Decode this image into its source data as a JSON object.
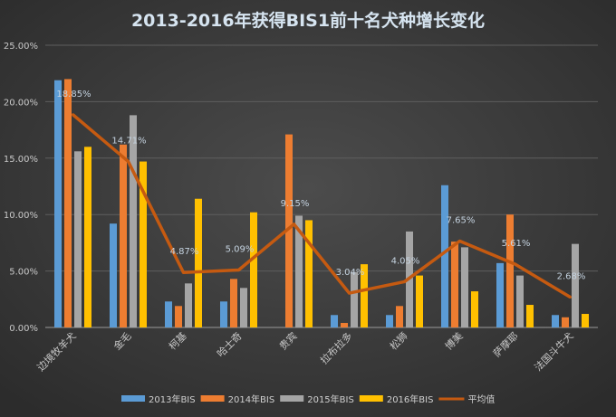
{
  "chart_data": {
    "type": "bar",
    "title": "2013-2016年获得BIS1前十名犬种增长变化",
    "categories": [
      "边境牧羊犬",
      "金毛",
      "柯基",
      "哈士奇",
      "贵宾",
      "拉布拉多",
      "松狮",
      "博美",
      "萨摩耶",
      "法国斗牛犬"
    ],
    "ylim": [
      0,
      25
    ],
    "yticks": [
      "0.00%",
      "5.00%",
      "10.00%",
      "15.00%",
      "20.00%",
      "25.00%"
    ],
    "grid": true,
    "legend_position": "bottom",
    "series": [
      {
        "name": "2013年BIS",
        "type": "bar",
        "color": "#5b9bd5",
        "values": [
          21.9,
          9.2,
          2.3,
          2.3,
          0,
          1.1,
          1.1,
          12.6,
          5.7,
          1.1
        ]
      },
      {
        "name": "2014年BIS",
        "type": "bar",
        "color": "#ed7d31",
        "values": [
          22.0,
          16.2,
          1.9,
          4.3,
          17.1,
          0.4,
          1.9,
          7.6,
          10.0,
          0.9
        ]
      },
      {
        "name": "2015年BIS",
        "type": "bar",
        "color": "#a5a5a5",
        "values": [
          15.6,
          18.8,
          3.9,
          3.5,
          9.9,
          4.9,
          8.5,
          7.1,
          4.6,
          7.4
        ]
      },
      {
        "name": "2016年BIS",
        "type": "bar",
        "color": "#ffc000",
        "values": [
          16.0,
          14.7,
          11.4,
          10.2,
          9.5,
          5.6,
          4.6,
          3.2,
          2.0,
          1.2
        ]
      },
      {
        "name": "平均值",
        "type": "line",
        "color": "#c55a11",
        "values": [
          18.85,
          14.71,
          4.87,
          5.09,
          9.15,
          3.04,
          4.05,
          7.65,
          5.61,
          2.68
        ],
        "labels": [
          "18.85%",
          "14.71%",
          "4.87%",
          "5.09%",
          "9.15%",
          "3.04%",
          "4.05%",
          "7.65%",
          "5.61%",
          "2.68%"
        ]
      }
    ]
  }
}
